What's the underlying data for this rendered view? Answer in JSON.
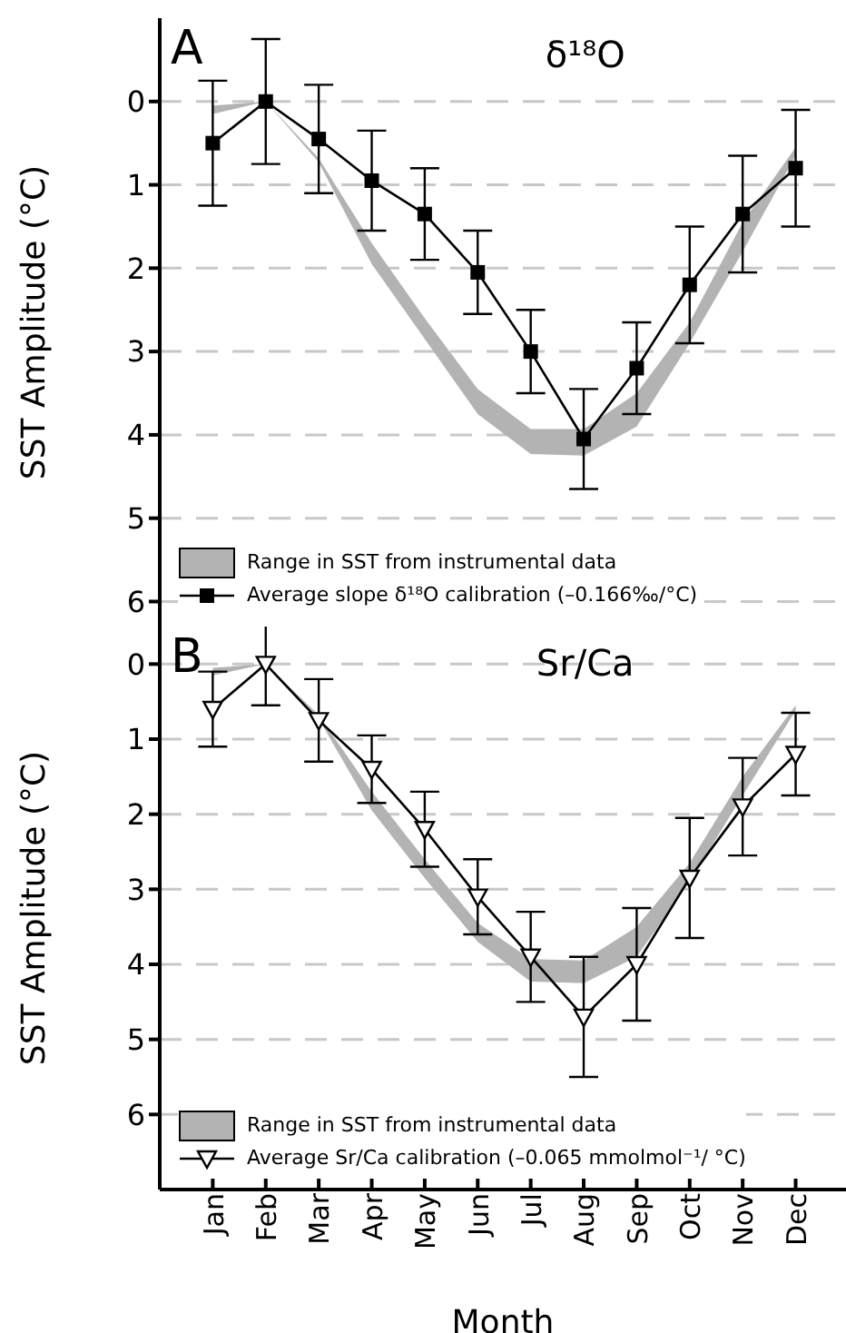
{
  "chart_data": [
    {
      "type": "line",
      "title": "δ¹⁸O",
      "annotations": [
        "A"
      ],
      "ylabel": "SST Amplitude (°C)",
      "categories": [
        null,
        null,
        null,
        null,
        null,
        null,
        null,
        null,
        null,
        null,
        null,
        null
      ],
      "ylim": [
        6.3,
        -1
      ],
      "yticks": [
        0,
        1,
        2,
        3,
        4,
        5,
        6
      ],
      "grid": "y",
      "legend": "bottom left",
      "tick_labels": "y",
      "series": [
        {
          "name": "Range in SST from instrumental data",
          "type": "area",
          "color": "#b3b3b3",
          "values": [
            null,
            null,
            null,
            null,
            null,
            null,
            null,
            null,
            null,
            null,
            null,
            null
          ],
          "lower": [
            0.05,
            0,
            0.68,
            1.7,
            2.6,
            3.45,
            3.93,
            3.93,
            3.5,
            2.65,
            1.45,
            0.55
          ],
          "upper": [
            0.15,
            0,
            0.73,
            1.95,
            2.85,
            3.75,
            4.23,
            4.25,
            3.9,
            2.9,
            1.8,
            0.65
          ]
        },
        {
          "name": "Average slope δ¹⁸O calibration (–0.166‰/°C)",
          "color": "#000000",
          "marker": "square",
          "values": [
            0.5,
            0,
            0.45,
            0.95,
            1.35,
            2.05,
            3.0,
            4.05,
            3.2,
            2.2,
            1.35,
            0.8
          ],
          "errors": [
            0.75,
            0.75,
            0.65,
            0.6,
            0.55,
            0.5,
            0.5,
            0.6,
            0.55,
            0.7,
            0.7,
            0.7
          ]
        }
      ]
    },
    {
      "type": "line",
      "title": "Sr/Ca",
      "annotations": [
        "B"
      ],
      "xlabel": "Month",
      "ylabel": "SST Amplitude (°C)",
      "categories": [
        "Jan",
        "Feb",
        "Mar",
        "Apr",
        "May",
        "Jun",
        "Jul",
        "Aug",
        "Sep",
        "Oct",
        "Nov",
        "Dec"
      ],
      "ylim": [
        7,
        -0.5
      ],
      "yticks": [
        0,
        1,
        2,
        3,
        4,
        5,
        6
      ],
      "grid": "y",
      "legend": "bottom left",
      "series": [
        {
          "name": "Range in SST from instrumental data",
          "type": "area",
          "color": "#b3b3b3",
          "values": [
            null,
            null,
            null,
            null,
            null,
            null,
            null,
            null,
            null,
            null,
            null,
            null
          ],
          "lower": [
            0.05,
            0,
            0.68,
            1.7,
            2.6,
            3.45,
            3.93,
            3.95,
            3.5,
            2.65,
            1.5,
            0.55
          ],
          "upper": [
            0.15,
            0,
            0.73,
            1.95,
            2.85,
            3.7,
            4.23,
            4.25,
            3.9,
            2.9,
            1.75,
            0.62
          ]
        },
        {
          "name": "Average Sr/Ca calibration (–0.065 mmolmol⁻¹/ °C)",
          "color": "#000000",
          "marker": "triangle",
          "values": [
            0.6,
            0,
            0.75,
            1.4,
            2.2,
            3.1,
            3.9,
            4.7,
            4.0,
            2.85,
            1.9,
            1.2
          ],
          "errors": [
            0.5,
            0.55,
            0.55,
            0.45,
            0.5,
            0.5,
            0.6,
            0.8,
            0.75,
            0.8,
            0.65,
            0.55
          ]
        }
      ]
    }
  ]
}
